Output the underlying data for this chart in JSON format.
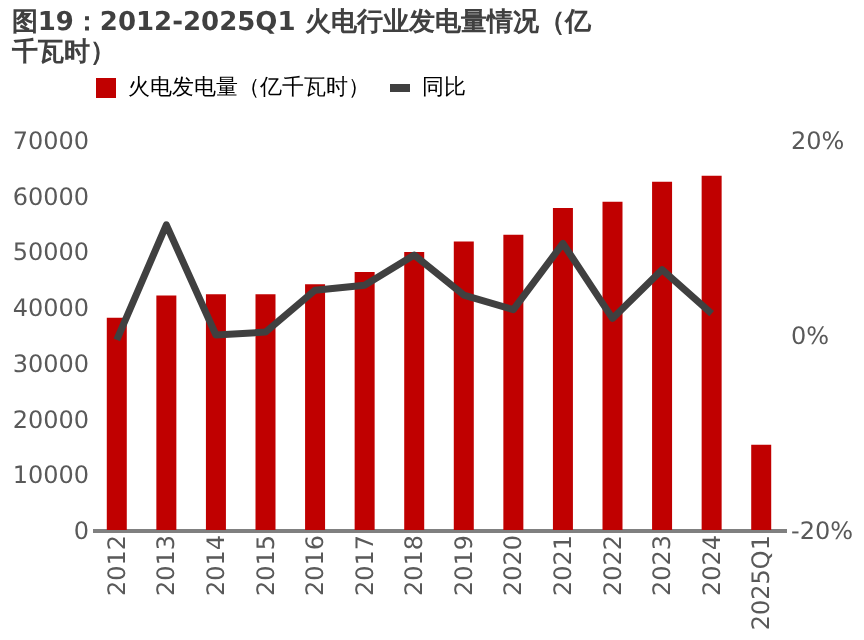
{
  "chart_data": {
    "type": "bar",
    "title": "图19：2012-2025Q1 火电行业发电量情况（亿千瓦时）",
    "categories": [
      "2012",
      "2013",
      "2014",
      "2015",
      "2016",
      "2017",
      "2018",
      "2019",
      "2020",
      "2021",
      "2022",
      "2023",
      "2024",
      "2025Q1"
    ],
    "series": [
      {
        "name": "火电发电量（亿千瓦时）",
        "color": "#c00000",
        "values": [
          38100,
          42100,
          42300,
          42300,
          44100,
          46300,
          49900,
          51800,
          53000,
          57800,
          58900,
          62500,
          63600,
          15300
        ]
      },
      {
        "name": "同比",
        "type": "line",
        "axis": "y2",
        "color": "#404040",
        "values": [
          -0.5,
          11.3,
          0.0,
          0.3,
          4.6,
          5.1,
          8.2,
          4.1,
          2.6,
          9.4,
          1.7,
          6.7,
          2.2,
          null
        ]
      }
    ],
    "ylim": [
      0,
      70000
    ],
    "yticks": [
      0,
      10000,
      20000,
      30000,
      40000,
      50000,
      60000,
      70000
    ],
    "y2lim": [
      -20,
      20
    ],
    "y2ticks": [
      {
        "value": -20,
        "label": "-20%"
      },
      {
        "value": 0,
        "label": "0%"
      },
      {
        "value": 20,
        "label": "20%"
      }
    ],
    "legend": "top",
    "grid": false
  }
}
